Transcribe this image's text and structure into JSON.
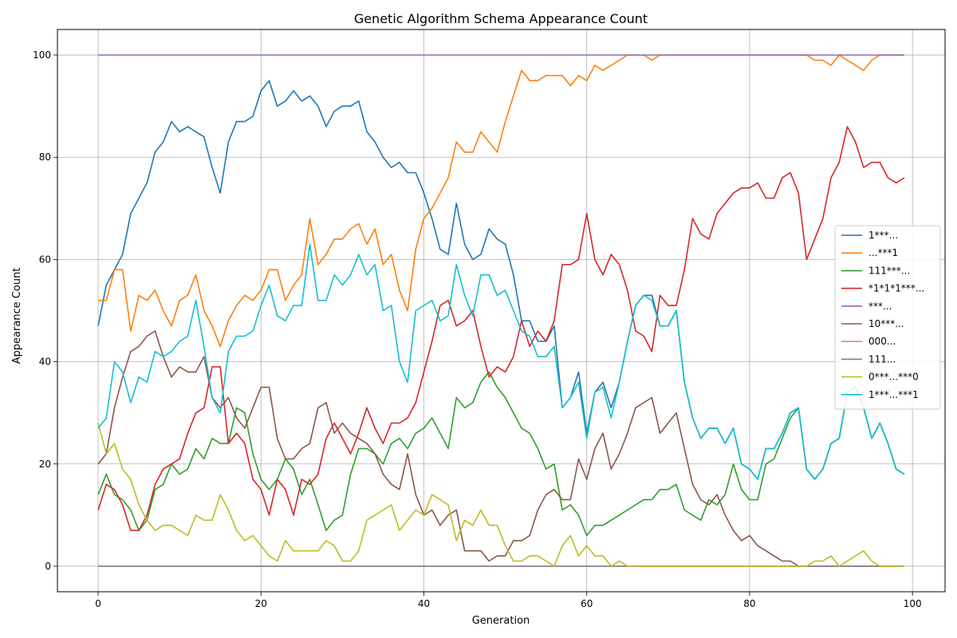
{
  "chart_data": {
    "type": "line",
    "title": "Genetic Algorithm Schema Appearance Count",
    "xlabel": "Generation",
    "ylabel": "Appearance Count",
    "xlim": [
      -5,
      104
    ],
    "ylim": [
      -5,
      105
    ],
    "xticks": [
      0,
      20,
      40,
      60,
      80,
      100
    ],
    "yticks": [
      0,
      20,
      40,
      60,
      80,
      100
    ],
    "grid": true,
    "legend_position": "center-right",
    "x": [
      0,
      1,
      2,
      3,
      4,
      5,
      6,
      7,
      8,
      9,
      10,
      11,
      12,
      13,
      14,
      15,
      16,
      17,
      18,
      19,
      20,
      21,
      22,
      23,
      24,
      25,
      26,
      27,
      28,
      29,
      30,
      31,
      32,
      33,
      34,
      35,
      36,
      37,
      38,
      39,
      40,
      41,
      42,
      43,
      44,
      45,
      46,
      47,
      48,
      49,
      50,
      51,
      52,
      53,
      54,
      55,
      56,
      57,
      58,
      59,
      60,
      61,
      62,
      63,
      64,
      65,
      66,
      67,
      68,
      69,
      70,
      71,
      72,
      73,
      74,
      75,
      76,
      77,
      78,
      79,
      80,
      81,
      82,
      83,
      84,
      85,
      86,
      87,
      88,
      89,
      90,
      91,
      92,
      93,
      94,
      95,
      96,
      97,
      98,
      99
    ],
    "series": [
      {
        "name": "1***...",
        "color": "#1f77b4",
        "values": [
          47,
          55,
          58,
          61,
          69,
          72,
          75,
          81,
          83,
          87,
          85,
          86,
          85,
          84,
          78,
          73,
          83,
          87,
          87,
          88,
          93,
          95,
          90,
          91,
          93,
          91,
          92,
          90,
          86,
          89,
          90,
          90,
          91,
          85,
          83,
          80,
          78,
          79,
          77,
          77,
          73,
          68,
          62,
          61,
          71,
          63,
          60,
          61,
          66,
          64,
          63,
          57,
          48,
          48,
          44,
          44,
          47,
          31,
          33,
          38,
          26,
          34,
          36,
          31,
          36,
          44,
          51,
          53,
          53,
          47,
          47,
          50,
          36,
          29,
          25,
          27,
          27,
          24,
          27,
          20,
          19,
          17,
          23,
          23,
          26,
          30,
          31,
          19,
          17,
          19,
          24,
          25,
          34,
          35,
          31,
          25,
          28,
          24,
          19,
          18
        ]
      },
      {
        "name": "...***1",
        "color": "#ff7f0e",
        "values": [
          52,
          52,
          58,
          58,
          46,
          53,
          52,
          54,
          50,
          47,
          52,
          53,
          57,
          50,
          47,
          43,
          48,
          51,
          53,
          52,
          54,
          58,
          58,
          52,
          55,
          57,
          68,
          59,
          61,
          64,
          64,
          66,
          67,
          63,
          66,
          59,
          61,
          54,
          50,
          62,
          68,
          70,
          73,
          76,
          83,
          81,
          81,
          85,
          83,
          81,
          87,
          92,
          97,
          95,
          95,
          96,
          96,
          96,
          94,
          96,
          95,
          98,
          97,
          98,
          99,
          100,
          100,
          100,
          99,
          100,
          100,
          100,
          100,
          100,
          100,
          100,
          100,
          100,
          100,
          100,
          100,
          100,
          100,
          100,
          100,
          100,
          100,
          100,
          99,
          99,
          98,
          100,
          99,
          98,
          97,
          99,
          100,
          100,
          100,
          100
        ]
      },
      {
        "name": "111***...",
        "color": "#2ca02c",
        "values": [
          14,
          18,
          14,
          13,
          11,
          7,
          9,
          15,
          16,
          20,
          18,
          19,
          23,
          21,
          25,
          24,
          24,
          31,
          30,
          22,
          17,
          15,
          17,
          21,
          19,
          14,
          17,
          12,
          7,
          9,
          10,
          18,
          23,
          23,
          22,
          20,
          24,
          25,
          23,
          26,
          27,
          29,
          26,
          23,
          33,
          31,
          32,
          36,
          38,
          35,
          33,
          30,
          27,
          26,
          23,
          19,
          20,
          11,
          12,
          10,
          6,
          8,
          8,
          9,
          10,
          11,
          12,
          13,
          13,
          15,
          15,
          16,
          11,
          10,
          9,
          13,
          12,
          14,
          20,
          15,
          13,
          13,
          20,
          21,
          25,
          29,
          31,
          19,
          17,
          19,
          24,
          25,
          34,
          35,
          31,
          25,
          28,
          24,
          19,
          18
        ]
      },
      {
        "name": "*1*1*1***...",
        "color": "#d62728",
        "values": [
          11,
          16,
          15,
          12,
          7,
          7,
          10,
          16,
          19,
          20,
          21,
          26,
          30,
          31,
          39,
          39,
          24,
          26,
          24,
          17,
          15,
          10,
          17,
          15,
          10,
          17,
          16,
          18,
          25,
          28,
          25,
          22,
          26,
          31,
          27,
          24,
          28,
          28,
          29,
          32,
          38,
          44,
          51,
          52,
          47,
          48,
          50,
          43,
          37,
          39,
          38,
          41,
          48,
          43,
          46,
          44,
          48,
          59,
          59,
          60,
          69,
          60,
          57,
          61,
          59,
          54,
          46,
          45,
          42,
          53,
          51,
          51,
          58,
          68,
          65,
          64,
          69,
          71,
          73,
          74,
          74,
          75,
          72,
          72,
          76,
          77,
          73,
          60,
          64,
          68,
          76,
          79,
          86,
          83,
          78,
          79,
          79,
          76,
          75,
          76
        ]
      },
      {
        "name": "***...",
        "color": "#9467bd",
        "values": [
          100,
          100,
          100,
          100,
          100,
          100,
          100,
          100,
          100,
          100,
          100,
          100,
          100,
          100,
          100,
          100,
          100,
          100,
          100,
          100,
          100,
          100,
          100,
          100,
          100,
          100,
          100,
          100,
          100,
          100,
          100,
          100,
          100,
          100,
          100,
          100,
          100,
          100,
          100,
          100,
          100,
          100,
          100,
          100,
          100,
          100,
          100,
          100,
          100,
          100,
          100,
          100,
          100,
          100,
          100,
          100,
          100,
          100,
          100,
          100,
          100,
          100,
          100,
          100,
          100,
          100,
          100,
          100,
          100,
          100,
          100,
          100,
          100,
          100,
          100,
          100,
          100,
          100,
          100,
          100,
          100,
          100,
          100,
          100,
          100,
          100,
          100,
          100,
          100,
          100,
          100,
          100,
          100,
          100,
          100,
          100,
          100,
          100,
          100,
          100
        ]
      },
      {
        "name": "10***...",
        "color": "#8c564b",
        "values": [
          20,
          22,
          31,
          37,
          42,
          43,
          45,
          46,
          41,
          37,
          39,
          38,
          38,
          41,
          33,
          31,
          33,
          29,
          27,
          31,
          35,
          35,
          25,
          21,
          21,
          23,
          24,
          31,
          32,
          26,
          28,
          26,
          25,
          24,
          22,
          18,
          16,
          15,
          22,
          14,
          10,
          11,
          8,
          10,
          11,
          3,
          3,
          3,
          1,
          2,
          2,
          5,
          5,
          6,
          11,
          14,
          15,
          13,
          13,
          21,
          17,
          23,
          26,
          19,
          22,
          26,
          31,
          32,
          33,
          26,
          28,
          30,
          23,
          16,
          13,
          12,
          14,
          10,
          7,
          5,
          6,
          4,
          3,
          2,
          1,
          1,
          0,
          0,
          0,
          0,
          0,
          0,
          0,
          0,
          0,
          0,
          0,
          0,
          0,
          0
        ]
      },
      {
        "name": "000...",
        "color": "#e377c2",
        "values": [
          0,
          0,
          0,
          0,
          0,
          0,
          0,
          0,
          0,
          0,
          0,
          0,
          0,
          0,
          0,
          0,
          0,
          0,
          0,
          0,
          0,
          0,
          0,
          0,
          0,
          0,
          0,
          0,
          0,
          0,
          0,
          0,
          0,
          0,
          0,
          0,
          0,
          0,
          0,
          0,
          0,
          0,
          0,
          0,
          0,
          0,
          0,
          0,
          0,
          0,
          0,
          0,
          0,
          0,
          0,
          0,
          0,
          0,
          0,
          0,
          0,
          0,
          0,
          0,
          0,
          0,
          0,
          0,
          0,
          0,
          0,
          0,
          0,
          0,
          0,
          0,
          0,
          0,
          0,
          0,
          0,
          0,
          0,
          0,
          0,
          0,
          0,
          0,
          0,
          0,
          0,
          0,
          0,
          0,
          0,
          0,
          0,
          0,
          0,
          0
        ]
      },
      {
        "name": "111...",
        "color": "#7f7f7f",
        "values": [
          0,
          0,
          0,
          0,
          0,
          0,
          0,
          0,
          0,
          0,
          0,
          0,
          0,
          0,
          0,
          0,
          0,
          0,
          0,
          0,
          0,
          0,
          0,
          0,
          0,
          0,
          0,
          0,
          0,
          0,
          0,
          0,
          0,
          0,
          0,
          0,
          0,
          0,
          0,
          0,
          0,
          0,
          0,
          0,
          0,
          0,
          0,
          0,
          0,
          0,
          0,
          0,
          0,
          0,
          0,
          0,
          0,
          0,
          0,
          0,
          0,
          0,
          0,
          0,
          0,
          0,
          0,
          0,
          0,
          0,
          0,
          0,
          0,
          0,
          0,
          0,
          0,
          0,
          0,
          0,
          0,
          0,
          0,
          0,
          0,
          0,
          0,
          0,
          0,
          0,
          0,
          0,
          0,
          0,
          0,
          0,
          0,
          0,
          0,
          0
        ]
      },
      {
        "name": "0***...***0",
        "color": "#bcbd22",
        "values": [
          28,
          22,
          24,
          19,
          17,
          12,
          9,
          7,
          8,
          8,
          7,
          6,
          10,
          9,
          9,
          14,
          11,
          7,
          5,
          6,
          4,
          2,
          1,
          5,
          3,
          3,
          3,
          3,
          5,
          4,
          1,
          1,
          3,
          9,
          10,
          11,
          12,
          7,
          9,
          11,
          10,
          14,
          13,
          12,
          5,
          9,
          8,
          11,
          8,
          8,
          4,
          1,
          1,
          2,
          2,
          1,
          0,
          4,
          6,
          2,
          4,
          2,
          2,
          0,
          1,
          0,
          0,
          0,
          0,
          0,
          0,
          0,
          0,
          0,
          0,
          0,
          0,
          0,
          0,
          0,
          0,
          0,
          0,
          0,
          0,
          0,
          0,
          0,
          1,
          1,
          2,
          0,
          1,
          2,
          3,
          1,
          0,
          0,
          0,
          0
        ]
      },
      {
        "name": "1***...***1",
        "color": "#17becf",
        "values": [
          27,
          29,
          40,
          38,
          32,
          37,
          36,
          42,
          41,
          42,
          44,
          45,
          52,
          43,
          33,
          30,
          42,
          45,
          45,
          46,
          51,
          55,
          49,
          48,
          51,
          51,
          63,
          52,
          52,
          57,
          55,
          57,
          61,
          57,
          59,
          50,
          51,
          40,
          36,
          50,
          51,
          52,
          48,
          49,
          59,
          53,
          49,
          57,
          57,
          53,
          54,
          50,
          46,
          45,
          41,
          41,
          43,
          31,
          33,
          36,
          25,
          34,
          35,
          29,
          36,
          44,
          51,
          53,
          52,
          47,
          47,
          50,
          36,
          29,
          25,
          27,
          27,
          24,
          27,
          20,
          19,
          17,
          23,
          23,
          26,
          30,
          31,
          19,
          17,
          19,
          24,
          25,
          34,
          35,
          31,
          25,
          28,
          24,
          19,
          18
        ]
      }
    ]
  }
}
